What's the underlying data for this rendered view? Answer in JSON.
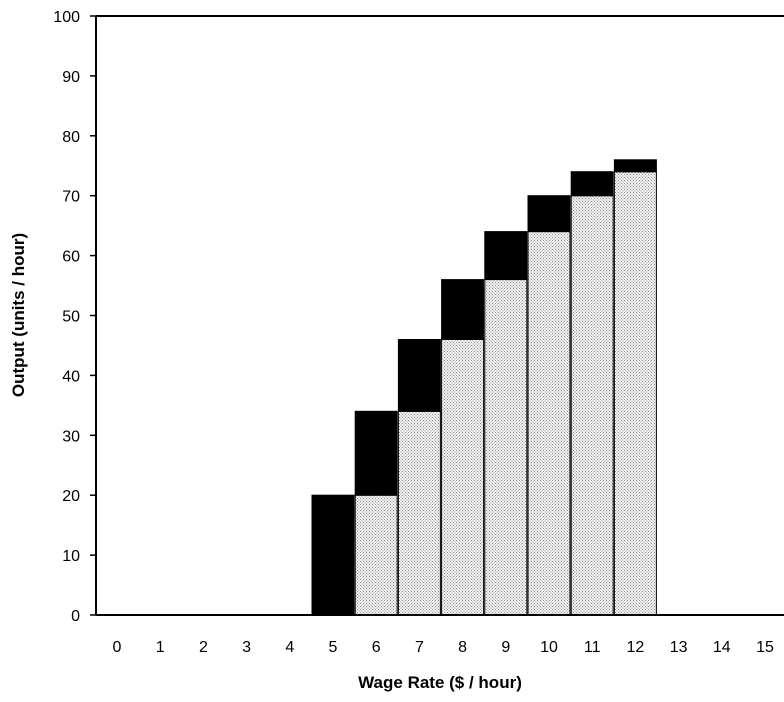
{
  "chart_data": {
    "type": "bar",
    "stacked": true,
    "title": "",
    "xlabel": "Wage Rate ($ / hour)",
    "ylabel": "Output (units / hour)",
    "ylim": [
      0,
      100
    ],
    "yticks": [
      0,
      10,
      20,
      30,
      40,
      50,
      60,
      70,
      80,
      90,
      100
    ],
    "categories": [
      "0",
      "1",
      "2",
      "3",
      "4",
      "5",
      "6",
      "7",
      "8",
      "9",
      "10",
      "11",
      "12",
      "13",
      "14",
      "15"
    ],
    "series": [
      {
        "fill": "dotted-gray",
        "values": [
          0,
          0,
          0,
          0,
          0,
          0,
          20,
          34,
          46,
          56,
          64,
          70,
          74,
          0,
          0,
          0
        ]
      },
      {
        "fill": "black",
        "values": [
          0,
          0,
          0,
          0,
          0,
          20,
          14,
          12,
          10,
          8,
          6,
          4,
          2,
          0,
          0,
          0
        ]
      }
    ],
    "grid": false,
    "legend": "none"
  },
  "colors": {
    "dark_fill": "#000000",
    "light_fill": "#f3f3f3",
    "dot_color": "#8a8a8a",
    "axis": "#000000"
  }
}
